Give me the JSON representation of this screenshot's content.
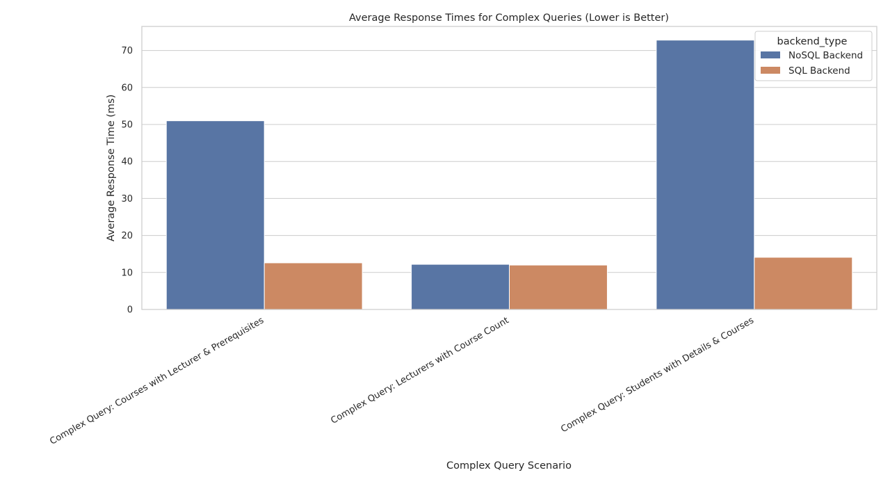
{
  "chart_data": {
    "type": "bar",
    "title": "Average Response Times for Complex Queries (Lower is Better)",
    "xlabel": "Complex Query Scenario",
    "ylabel": "Average Response Time (ms)",
    "categories": [
      "Complex Query: Courses with Lecturer & Prerequisites",
      "Complex Query: Lecturers with Course Count",
      "Complex Query: Students with Details & Courses"
    ],
    "series": [
      {
        "name": "NoSQL Backend",
        "color": "#5875a4",
        "values": [
          51.0,
          12.2,
          72.8
        ]
      },
      {
        "name": "SQL Backend",
        "color": "#cc8963",
        "values": [
          12.6,
          12.0,
          14.1
        ]
      }
    ],
    "ylim": [
      0,
      76.5
    ],
    "yticks": [
      0,
      10,
      20,
      30,
      40,
      50,
      60,
      70
    ],
    "grid": true,
    "legend": {
      "title": "backend_type",
      "position": "top-right"
    }
  }
}
